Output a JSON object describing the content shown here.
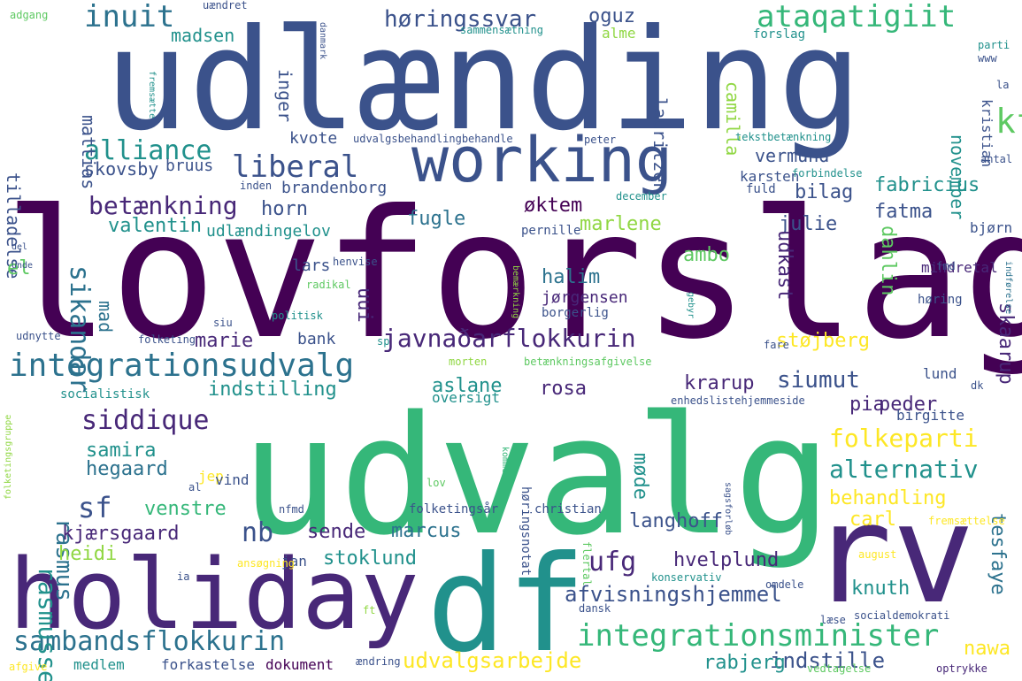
{
  "palette": {
    "background": "#ffffff",
    "navy": "#3b528b",
    "purple": "#482878",
    "dark_purple": "#440154",
    "teal": "#21918c",
    "blue_teal": "#2c728e",
    "green": "#35b779",
    "light_green": "#5ec962",
    "yellow_green": "#90d743",
    "yellow": "#fde725"
  },
  "words": [
    {
      "text": "udlænding"
    },
    {
      "text": "lovforslag"
    },
    {
      "text": "udvalg"
    },
    {
      "text": "df"
    },
    {
      "text": "rv"
    },
    {
      "text": "holiday"
    },
    {
      "text": "working"
    },
    {
      "text": "integrationsudvalg"
    },
    {
      "text": "javnaðarflokkurin"
    },
    {
      "text": "integrationsminister"
    },
    {
      "text": "sambandsflokkurin"
    },
    {
      "text": "ataqatigiit"
    },
    {
      "text": "høringssvar"
    },
    {
      "text": "inuit"
    },
    {
      "text": "liberal"
    },
    {
      "text": "alliance"
    },
    {
      "text": "sikandar"
    },
    {
      "text": "betænkning"
    },
    {
      "text": "kf"
    },
    {
      "text": "siddique"
    },
    {
      "text": "folkeparti"
    },
    {
      "text": "alternativ"
    },
    {
      "text": "siumut"
    },
    {
      "text": "nb"
    },
    {
      "text": "sf"
    },
    {
      "text": "ufg"
    },
    {
      "text": "rasmussen"
    },
    {
      "text": "rasmus"
    },
    {
      "text": "afvisningshjemmel"
    },
    {
      "text": "udvalgsarbejde"
    },
    {
      "text": "indstille"
    },
    {
      "text": "hvelplund"
    },
    {
      "text": "oguz"
    },
    {
      "text": "madsen"
    },
    {
      "text": "mattias"
    },
    {
      "text": "inger"
    },
    {
      "text": "camilla"
    },
    {
      "text": "lauritzen"
    },
    {
      "text": "vermund"
    },
    {
      "text": "skovsby"
    },
    {
      "text": "tilladelse"
    },
    {
      "text": "fabricius"
    },
    {
      "text": "fatma"
    },
    {
      "text": "bilag"
    },
    {
      "text": "julie"
    },
    {
      "text": "horn"
    },
    {
      "text": "valentin"
    },
    {
      "text": "fugle"
    },
    {
      "text": "øktem"
    },
    {
      "text": "marlene"
    },
    {
      "text": "ambo"
    },
    {
      "text": "udkast"
    },
    {
      "text": "dahlin"
    },
    {
      "text": "el"
    },
    {
      "text": "halim"
    },
    {
      "text": "uui"
    },
    {
      "text": "jørgensen"
    },
    {
      "text": "marie"
    },
    {
      "text": "mad"
    },
    {
      "text": "støjberg"
    },
    {
      "text": "skaarup"
    },
    {
      "text": "indstilling"
    },
    {
      "text": "aslane"
    },
    {
      "text": "rosa"
    },
    {
      "text": "krarup"
    },
    {
      "text": "pia"
    },
    {
      "text": "peder"
    },
    {
      "text": "samira"
    },
    {
      "text": "hegaard"
    },
    {
      "text": "møde"
    },
    {
      "text": "behandling"
    },
    {
      "text": "venstre"
    },
    {
      "text": "kjærsgaard"
    },
    {
      "text": "sende"
    },
    {
      "text": "marcus"
    },
    {
      "text": "langhoff"
    },
    {
      "text": "carl"
    },
    {
      "text": "tesfaye"
    },
    {
      "text": "heidi"
    },
    {
      "text": "stoklund"
    },
    {
      "text": "knuth"
    },
    {
      "text": "nawa"
    },
    {
      "text": "rabjerg"
    },
    {
      "text": "november"
    },
    {
      "text": "kristian"
    },
    {
      "text": "brandenborg"
    },
    {
      "text": "bruus"
    },
    {
      "text": "kvote"
    },
    {
      "text": "udlændingelov"
    },
    {
      "text": "lars"
    },
    {
      "text": "bank"
    },
    {
      "text": "oversigt"
    },
    {
      "text": "høringsnotat"
    },
    {
      "text": "folketingsår"
    },
    {
      "text": "christian"
    },
    {
      "text": "lund"
    },
    {
      "text": "birgitte"
    },
    {
      "text": "mindretal"
    },
    {
      "text": "bjørn"
    },
    {
      "text": "karsten"
    },
    {
      "text": "fuld"
    },
    {
      "text": "pernille"
    },
    {
      "text": "borgerlig"
    },
    {
      "text": "høring"
    },
    {
      "text": "jan"
    },
    {
      "text": "jep"
    },
    {
      "text": "vind"
    },
    {
      "text": "medlem"
    },
    {
      "text": "forkastelse"
    },
    {
      "text": "dokument"
    },
    {
      "text": "socialistisk"
    },
    {
      "text": "alme"
    },
    {
      "text": "forslag"
    },
    {
      "text": "parti"
    },
    {
      "text": "peter"
    },
    {
      "text": "tekstbetænkning"
    },
    {
      "text": "udvalgsbehandlingbehandle"
    },
    {
      "text": "forbindelse"
    },
    {
      "text": "antal"
    },
    {
      "text": "december"
    },
    {
      "text": "inden"
    },
    {
      "text": "henvise"
    },
    {
      "text": "radikal"
    },
    {
      "text": "politisk"
    },
    {
      "text": "siu"
    },
    {
      "text": "udnytte"
    },
    {
      "text": "folketing"
    },
    {
      "text": "sp"
    },
    {
      "text": "fare"
    },
    {
      "text": "morten"
    },
    {
      "text": "betænkningsafgivelse"
    },
    {
      "text": "enhedslistehjemmeside"
    },
    {
      "text": "dk"
    },
    {
      "text": "fremsættelse"
    },
    {
      "text": "august"
    },
    {
      "text": "flertal"
    },
    {
      "text": "konservativ"
    },
    {
      "text": "omdele"
    },
    {
      "text": "socialdemokrati"
    },
    {
      "text": "dansk"
    },
    {
      "text": "læse"
    },
    {
      "text": "optrykke"
    },
    {
      "text": "vedtagelse"
    },
    {
      "text": "ændring"
    },
    {
      "text": "afgive"
    },
    {
      "text": "ansøgning"
    },
    {
      "text": "adgang"
    },
    {
      "text": "uændret"
    },
    {
      "text": "danmark"
    },
    {
      "text": "sammensætning"
    },
    {
      "text": "www"
    },
    {
      "text": "la"
    },
    {
      "text": "fremsætte"
    },
    {
      "text": "fmd"
    },
    {
      "text": "indførelse"
    },
    {
      "text": "del"
    },
    {
      "text": "unde"
    },
    {
      "text": "bemærkning"
    },
    {
      "text": "gebyr"
    },
    {
      "text": "ft"
    },
    {
      "text": "ia"
    },
    {
      "text": "al"
    },
    {
      "text": "lov"
    },
    {
      "text": "nfmd"
    },
    {
      "text": "sagsforløb"
    },
    {
      "text": "komme"
    },
    {
      "text": "folketingsgruppe"
    }
  ]
}
